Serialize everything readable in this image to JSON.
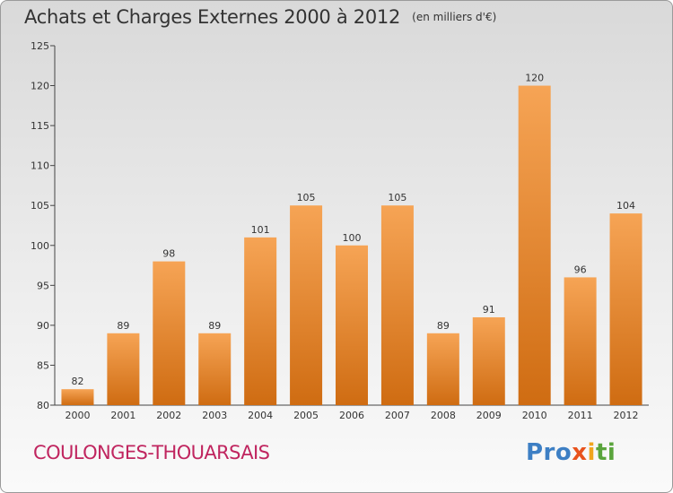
{
  "chart_data": {
    "type": "bar",
    "title": "Achats et Charges Externes 2000 à 2012",
    "subtitle": "(en milliers d'€)",
    "categories": [
      "2000",
      "2001",
      "2002",
      "2003",
      "2004",
      "2005",
      "2006",
      "2007",
      "2008",
      "2009",
      "2010",
      "2011",
      "2012"
    ],
    "values": [
      82,
      89,
      98,
      89,
      101,
      105,
      100,
      105,
      89,
      91,
      120,
      96,
      104
    ],
    "ylim": [
      80,
      125
    ],
    "yticks": [
      80,
      85,
      90,
      95,
      100,
      105,
      110,
      115,
      120,
      125
    ],
    "grid": false,
    "bar_color": "#f08a2c"
  },
  "footer": {
    "place": "COULONGES-THOUARSAIS",
    "logo": {
      "p1": "Pro",
      "p2": "x",
      "p3": "i",
      "p4": "ti"
    }
  }
}
